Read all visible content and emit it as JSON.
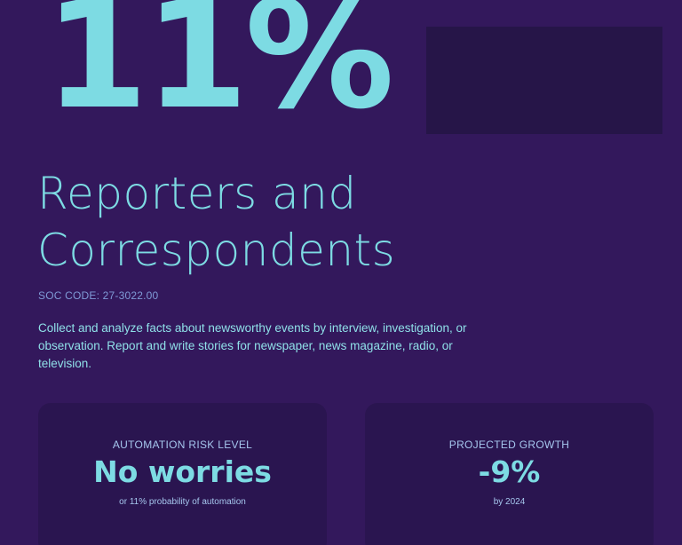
{
  "hero": {
    "percent": "11%"
  },
  "job": {
    "title_line1": "Reporters and",
    "title_line2": "Correspondents",
    "soc_code": "SOC CODE: 27-3022.00",
    "description": "Collect and analyze facts about newsworthy events by interview, investigation, or observation. Report and write stories for newspaper, news magazine, radio, or television."
  },
  "cards": {
    "risk": {
      "label": "AUTOMATION RISK LEVEL",
      "value": "No worries",
      "sub": "or 11% probability of automation"
    },
    "growth": {
      "label": "PROJECTED GROWTH",
      "value": "-9%",
      "sub": "by 2024"
    }
  },
  "colors": {
    "background": "#33185c",
    "accent": "#7ddbe3",
    "card": "#2a1550",
    "box": "#261548"
  }
}
